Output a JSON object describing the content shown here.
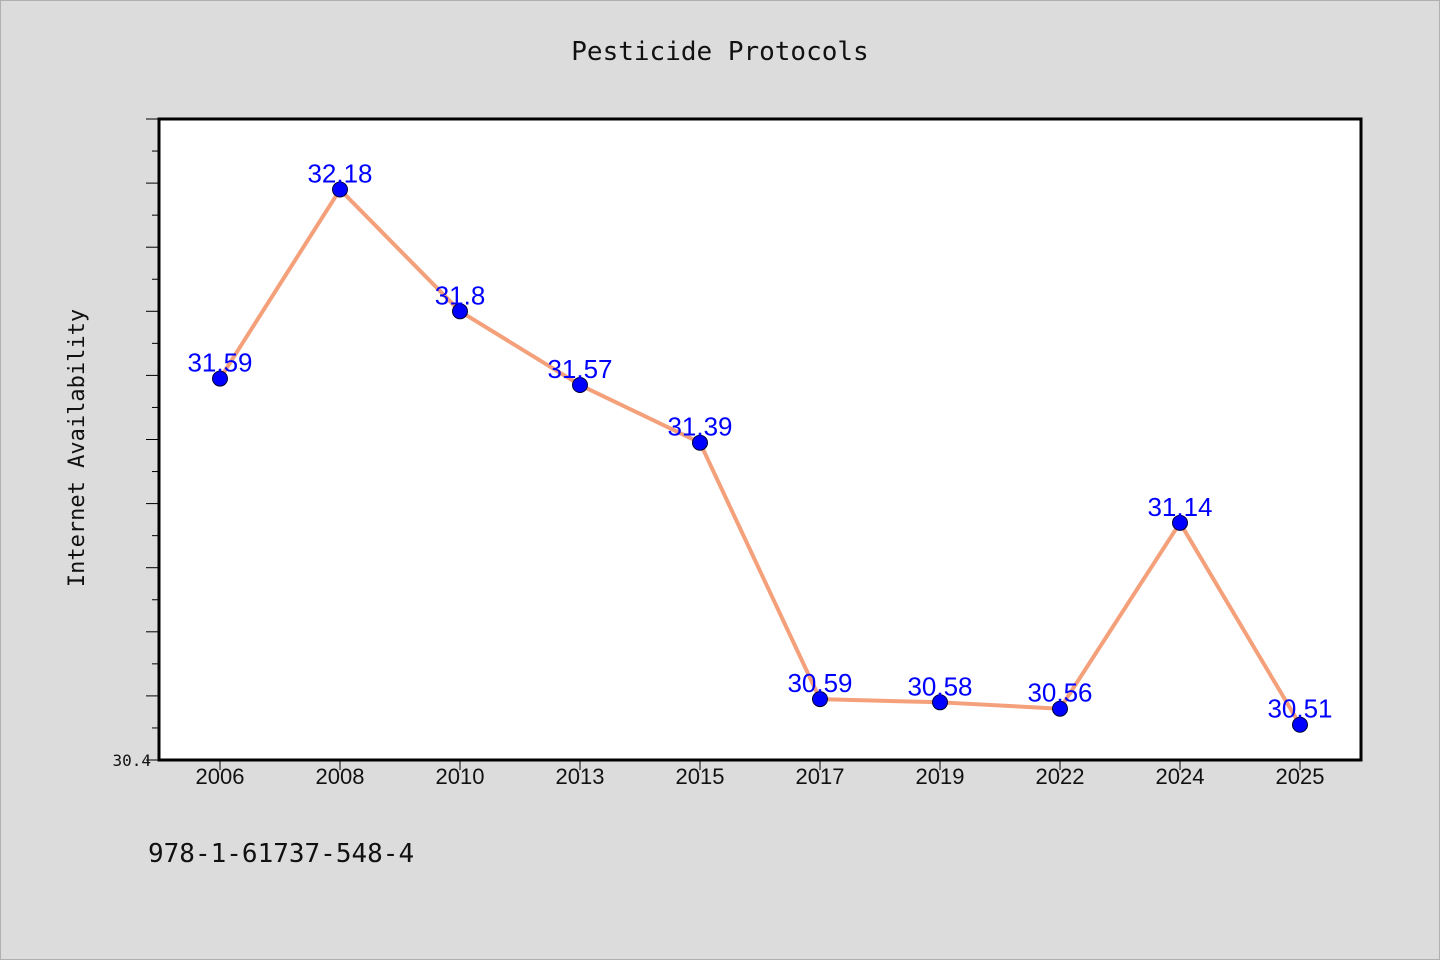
{
  "chart_data": {
    "type": "line",
    "title": "Pesticide Protocols",
    "xlabel": "",
    "ylabel": "Internet Availability",
    "categories": [
      "2006",
      "2008",
      "2010",
      "2013",
      "2015",
      "2017",
      "2019",
      "2022",
      "2024",
      "2025"
    ],
    "values": [
      31.59,
      32.18,
      31.8,
      31.57,
      31.39,
      30.59,
      30.58,
      30.56,
      31.14,
      30.51
    ],
    "data_labels": [
      "31.59",
      "32.18",
      "31.8",
      "31.57",
      "31.39",
      "30.59",
      "30.58",
      "30.56",
      "31.14",
      "30.51"
    ],
    "ylim": [
      30.4,
      32.4
    ],
    "ytick_labels": [
      "30.4"
    ],
    "grid": false,
    "line_color": "#f4a07a",
    "marker_color": "#0000ff",
    "label_color": "#0000ff"
  },
  "footer_text": "978-1-61737-548-4"
}
